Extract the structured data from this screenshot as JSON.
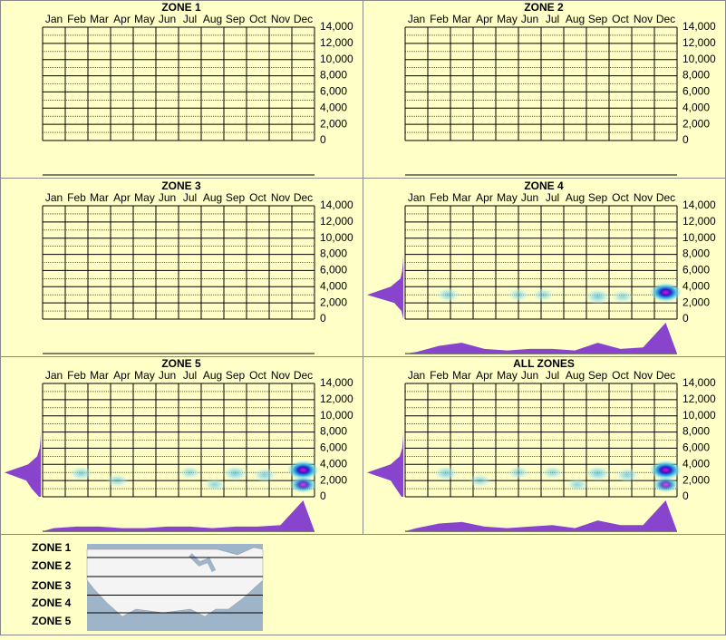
{
  "chart_data": [
    {
      "type": "heatmap",
      "title": "ZONE 1",
      "categories": [
        "Jan",
        "Feb",
        "Mar",
        "Apr",
        "May",
        "Jun",
        "Jul",
        "Aug",
        "Sep",
        "Oct",
        "Nov",
        "Dec"
      ],
      "ylim": [
        0,
        14000
      ],
      "yticks": [
        0,
        {
          "value": 2000,
          "label": "2,000"
        },
        {
          "value": 4000,
          "label": "4,000"
        },
        {
          "value": 6000,
          "label": "6,000"
        },
        {
          "value": 8000,
          "label": "8,000"
        },
        {
          "value": 10000,
          "label": "10,000"
        },
        {
          "value": 12000,
          "label": "12,000"
        },
        {
          "value": 14000,
          "label": "14,000"
        }
      ],
      "minor_yticks": [
        1000,
        3000,
        5000,
        7000,
        9000,
        11000,
        13000
      ]
    },
    {
      "type": "heatmap",
      "title": "ZONE 2",
      "categories": [
        "Jan",
        "Feb",
        "Mar",
        "Apr",
        "May",
        "Jun",
        "Jul",
        "Aug",
        "Sep",
        "Oct",
        "Nov",
        "Dec"
      ],
      "ylim": [
        0,
        14000
      ],
      "yticks": [
        0,
        {
          "value": 2000,
          "label": "2,000"
        },
        {
          "value": 4000,
          "label": "4,000"
        },
        {
          "value": 6000,
          "label": "6,000"
        },
        {
          "value": 8000,
          "label": "8,000"
        },
        {
          "value": 10000,
          "label": "10,000"
        },
        {
          "value": 12000,
          "label": "12,000"
        },
        {
          "value": 14000,
          "label": "14,000"
        }
      ],
      "minor_yticks": [
        1000,
        3000,
        5000,
        7000,
        9000,
        11000,
        13000
      ]
    },
    {
      "type": "heatmap",
      "title": "ZONE 3",
      "categories": [
        "Jan",
        "Feb",
        "Mar",
        "Apr",
        "May",
        "Jun",
        "Jul",
        "Aug",
        "Sep",
        "Oct",
        "Nov",
        "Dec"
      ],
      "ylim": [
        0,
        14000
      ],
      "yticks": [
        0,
        {
          "value": 2000,
          "label": "2,000"
        },
        {
          "value": 4000,
          "label": "4,000"
        },
        {
          "value": 6000,
          "label": "6,000"
        },
        {
          "value": 8000,
          "label": "8,000"
        },
        {
          "value": 10000,
          "label": "10,000"
        },
        {
          "value": 12000,
          "label": "12,000"
        },
        {
          "value": 14000,
          "label": "14,000"
        }
      ],
      "minor_yticks": [
        1000,
        3000,
        5000,
        7000,
        9000,
        11000,
        13000
      ]
    },
    {
      "type": "heatmap",
      "title": "ZONE 4",
      "categories": [
        "Jan",
        "Feb",
        "Mar",
        "Apr",
        "May",
        "Jun",
        "Jul",
        "Aug",
        "Sep",
        "Oct",
        "Nov",
        "Dec"
      ],
      "ylim": [
        0,
        14000
      ],
      "yticks": [
        0,
        {
          "value": 2000,
          "label": "2,000"
        },
        {
          "value": 4000,
          "label": "4,000"
        },
        {
          "value": 6000,
          "label": "6,000"
        },
        {
          "value": 8000,
          "label": "8,000"
        },
        {
          "value": 10000,
          "label": "10,000"
        },
        {
          "value": 12000,
          "label": "12,000"
        },
        {
          "value": 14000,
          "label": "14,000"
        }
      ],
      "minor_yticks": [
        1000,
        3000,
        5000,
        7000,
        9000,
        11000,
        13000
      ],
      "xlim": [
        0,
        12
      ],
      "points": {
        "x": [
          1.9,
          5.0,
          6.1,
          8.5,
          9.6,
          11.5
        ],
        "y": [
          3000,
          3000,
          3000,
          2800,
          2800,
          3300
        ],
        "intensity": [
          0.4,
          0.3,
          0.3,
          0.5,
          0.3,
          1
        ]
      },
      "x_density": [
        0.05,
        0.25,
        0.35,
        0.15,
        0.1,
        0.15,
        0.15,
        0.1,
        0.35,
        0.15,
        0.2,
        1
      ],
      "y_density": [
        0,
        0.05,
        0.25,
        1,
        0.35,
        0.08,
        0.03,
        0.01,
        0,
        0,
        0,
        0,
        0,
        0,
        0
      ],
      "density_color": "#8844cc"
    },
    {
      "type": "heatmap",
      "title": "ZONE 5",
      "categories": [
        "Jan",
        "Feb",
        "Mar",
        "Apr",
        "May",
        "Jun",
        "Jul",
        "Aug",
        "Sep",
        "Oct",
        "Nov",
        "Dec"
      ],
      "ylim": [
        0,
        14000
      ],
      "yticks": [
        0,
        {
          "value": 2000,
          "label": "2,000"
        },
        {
          "value": 4000,
          "label": "4,000"
        },
        {
          "value": 6000,
          "label": "6,000"
        },
        {
          "value": 8000,
          "label": "8,000"
        },
        {
          "value": 10000,
          "label": "10,000"
        },
        {
          "value": 12000,
          "label": "12,000"
        },
        {
          "value": 14000,
          "label": "14,000"
        }
      ],
      "minor_yticks": [
        1000,
        3000,
        5000,
        7000,
        9000,
        11000,
        13000
      ],
      "xlim": [
        0,
        12
      ],
      "points": {
        "x": [
          1.7,
          3.3,
          6.5,
          7.6,
          8.5,
          9.8,
          11.5,
          11.5
        ],
        "y": [
          2900,
          2000,
          3000,
          1500,
          2900,
          2700,
          3300,
          1500
        ],
        "intensity": [
          0.4,
          0.3,
          0.3,
          0.3,
          0.5,
          0.4,
          1,
          0.7
        ]
      },
      "x_density": [
        0.1,
        0.15,
        0.15,
        0.1,
        0.1,
        0.15,
        0.15,
        0.1,
        0.15,
        0.15,
        0.2,
        1
      ],
      "y_density": [
        0.05,
        0.25,
        0.4,
        1,
        0.35,
        0.1,
        0.03,
        0.01,
        0,
        0,
        0,
        0,
        0,
        0,
        0
      ],
      "density_color": "#8844cc"
    },
    {
      "type": "heatmap",
      "title": "ALL ZONES",
      "categories": [
        "Jan",
        "Feb",
        "Mar",
        "Apr",
        "May",
        "Jun",
        "Jul",
        "Aug",
        "Sep",
        "Oct",
        "Nov",
        "Dec"
      ],
      "ylim": [
        0,
        14000
      ],
      "yticks": [
        0,
        {
          "value": 2000,
          "label": "2,000"
        },
        {
          "value": 4000,
          "label": "4,000"
        },
        {
          "value": 6000,
          "label": "6,000"
        },
        {
          "value": 8000,
          "label": "8,000"
        },
        {
          "value": 10000,
          "label": "10,000"
        },
        {
          "value": 12000,
          "label": "12,000"
        },
        {
          "value": 14000,
          "label": "14,000"
        }
      ],
      "minor_yticks": [
        1000,
        3000,
        5000,
        7000,
        9000,
        11000,
        13000
      ],
      "xlim": [
        0,
        12
      ],
      "points": {
        "x": [
          1.8,
          3.3,
          5.0,
          6.5,
          7.6,
          8.5,
          9.8,
          11.5,
          11.5
        ],
        "y": [
          2900,
          2000,
          3000,
          3000,
          1500,
          2900,
          2700,
          3300,
          1500
        ],
        "intensity": [
          0.45,
          0.3,
          0.3,
          0.3,
          0.3,
          0.5,
          0.4,
          1,
          0.6
        ]
      },
      "x_density": [
        0.1,
        0.25,
        0.3,
        0.15,
        0.1,
        0.15,
        0.2,
        0.1,
        0.35,
        0.2,
        0.2,
        1
      ],
      "y_density": [
        0.05,
        0.2,
        0.35,
        1,
        0.35,
        0.1,
        0.03,
        0.01,
        0,
        0,
        0,
        0,
        0,
        0,
        0
      ],
      "density_color": "#8844cc"
    }
  ],
  "legend_map": {
    "zones": [
      "ZONE 1",
      "ZONE 2",
      "ZONE 3",
      "ZONE 4",
      "ZONE 5"
    ]
  }
}
